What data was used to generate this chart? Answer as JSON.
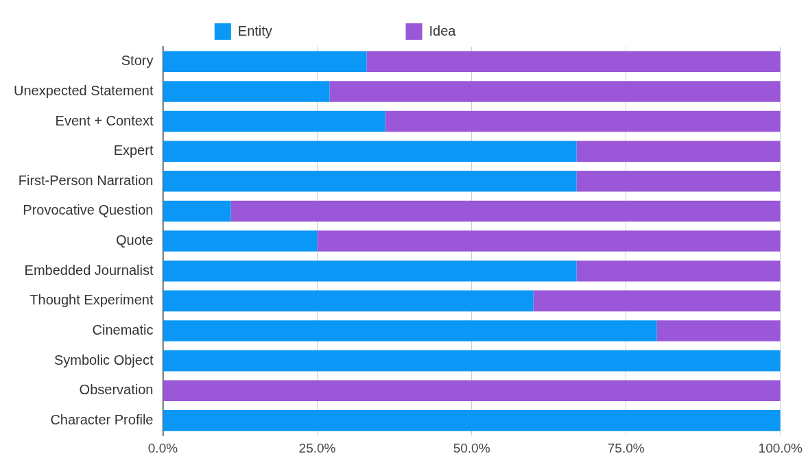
{
  "chart_data": {
    "type": "bar",
    "orientation": "horizontal",
    "stacked": true,
    "categories": [
      "Story",
      "Unexpected Statement",
      "Event + Context",
      "Expert",
      "First-Person Narration",
      "Provocative Question",
      "Quote",
      "Embedded Journalist",
      "Thought Experiment",
      "Cinematic",
      "Symbolic Object",
      "Observation",
      "Character Profile"
    ],
    "series": [
      {
        "name": "Entity",
        "color": "#0a97f5",
        "values": [
          33,
          27,
          36,
          67,
          67,
          11,
          25,
          67,
          60,
          80,
          100,
          0,
          100
        ]
      },
      {
        "name": "Idea",
        "color": "#9a57d8",
        "values": [
          67,
          73,
          64,
          33,
          33,
          89,
          75,
          33,
          40,
          20,
          0,
          100,
          0
        ]
      }
    ],
    "xlim": [
      0,
      100
    ],
    "xticks": [
      {
        "value": 0,
        "label": "0.0%"
      },
      {
        "value": 25,
        "label": "25.0%"
      },
      {
        "value": 50,
        "label": "50.0%"
      },
      {
        "value": 75,
        "label": "75.0%"
      },
      {
        "value": 100,
        "label": "100.0%"
      }
    ],
    "grid": "x",
    "legend": "top"
  }
}
